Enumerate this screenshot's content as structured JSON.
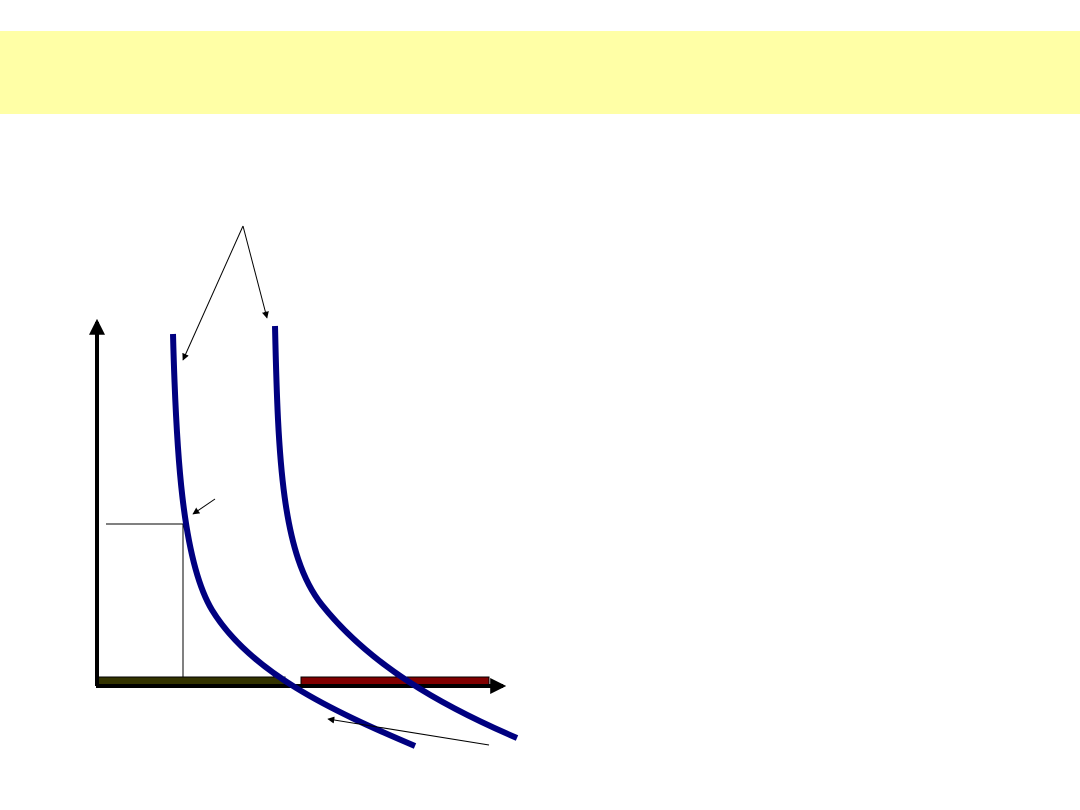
{
  "slide": {
    "title": "",
    "colors": {
      "title_band": "#FFFFA6",
      "curve": "#000080",
      "axis": "#000000",
      "bar_left": "#333300",
      "bar_right": "#800000",
      "guide_line": "#000000"
    }
  },
  "diagram": {
    "curves": [
      {
        "name": "curve-left"
      },
      {
        "name": "curve-right"
      }
    ],
    "bars": [
      {
        "name": "bar-left",
        "color": "#333300"
      },
      {
        "name": "bar-right",
        "color": "#800000"
      }
    ],
    "labels": []
  }
}
